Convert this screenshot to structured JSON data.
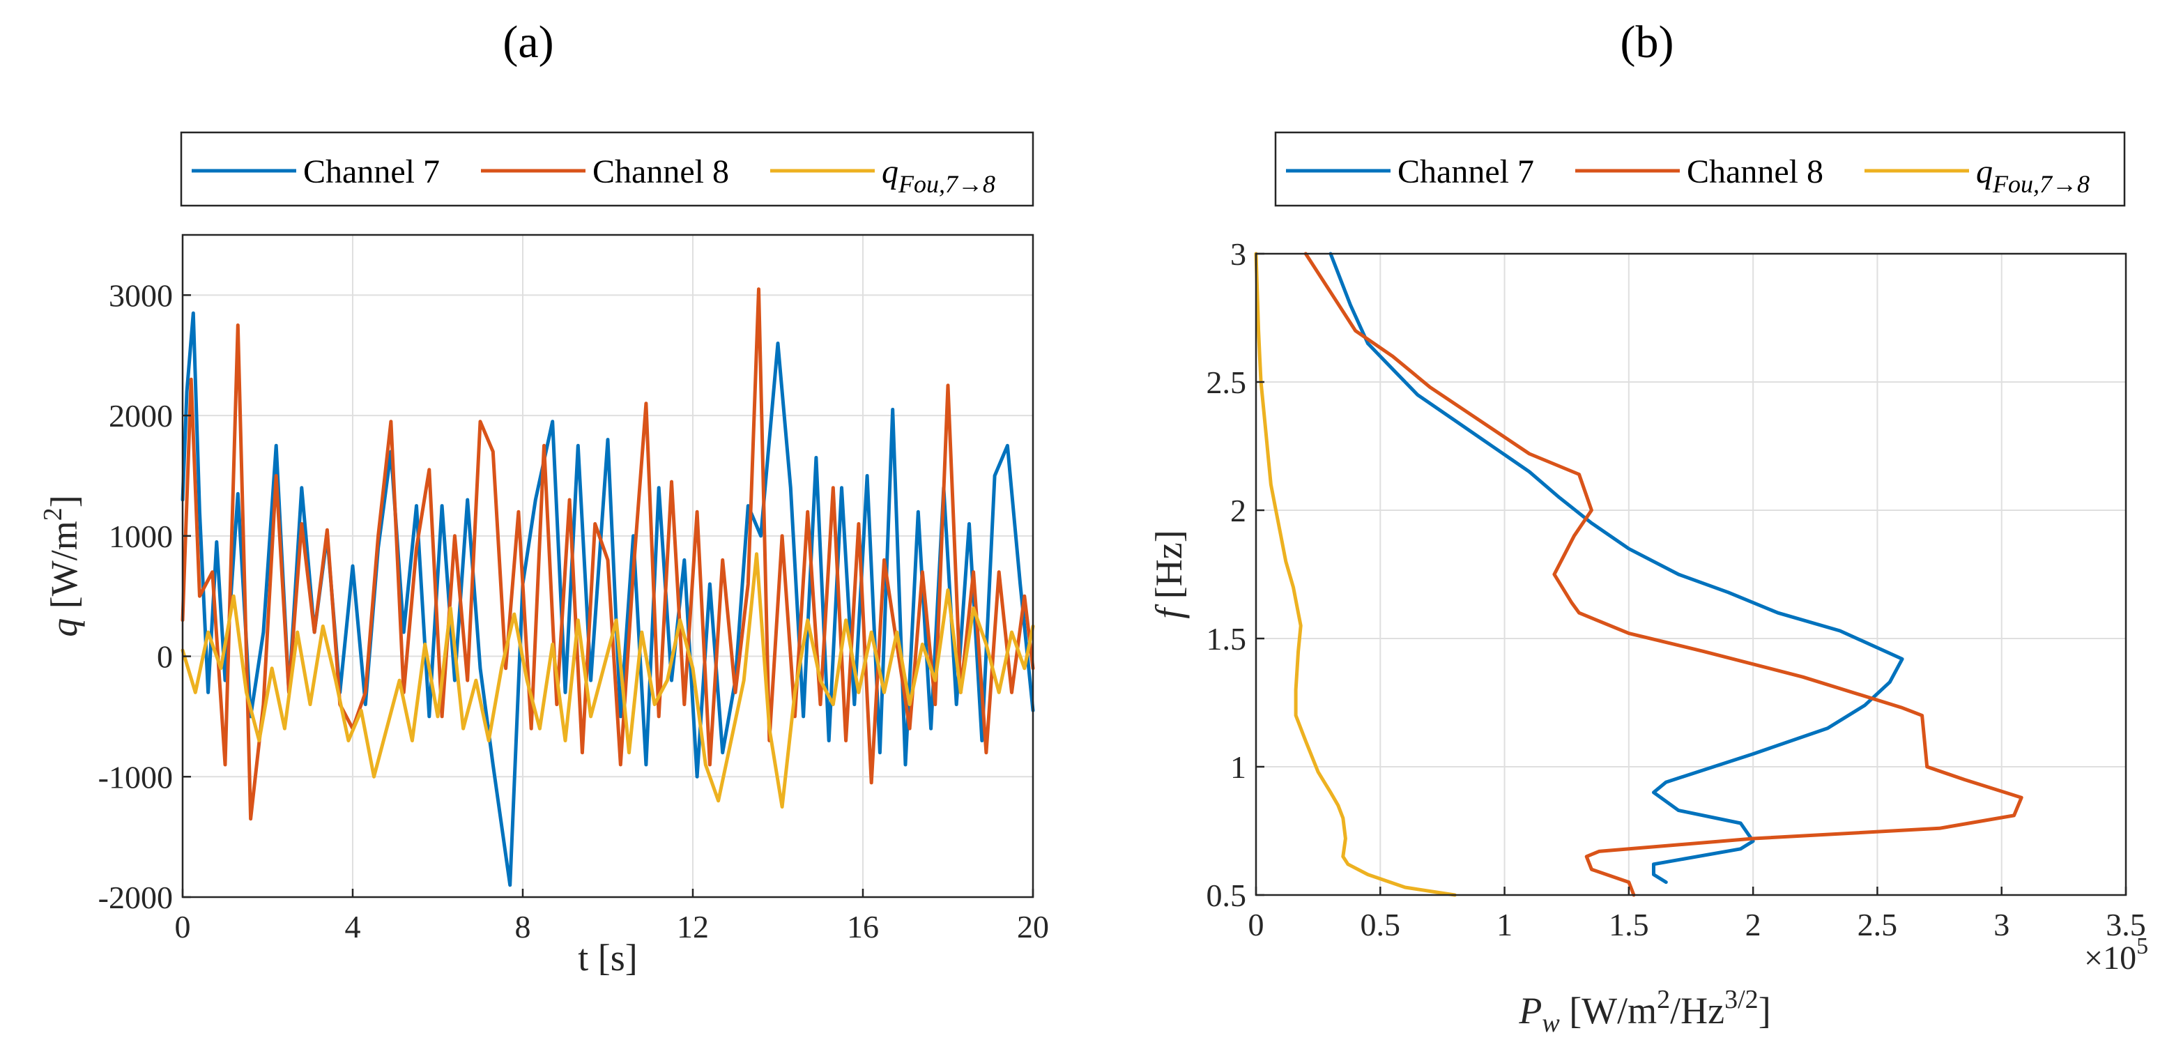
{
  "colors": {
    "channel7": "#0072BD",
    "channel8": "#D95319",
    "qfou": "#EDB120"
  },
  "chart_data": [
    {
      "type": "line",
      "title": "(a)",
      "xlabel": "t [s]",
      "ylabel": {
        "symbol": "q",
        "unit": " [W/m",
        "sup": "2",
        "close": "]"
      },
      "xlim": [
        0,
        20
      ],
      "ylim": [
        -2000,
        3500
      ],
      "xticks": [
        0,
        4,
        8,
        12,
        16,
        20
      ],
      "yticks": [
        -2000,
        -1000,
        0,
        1000,
        2000,
        3000
      ],
      "grid": true,
      "legend": {
        "placement": "top",
        "entries": [
          "Channel 7",
          "Channel 8",
          "q_Fou,7→8"
        ]
      },
      "series": [
        {
          "name": "Channel 7",
          "color": "#0072BD",
          "x": [
            0,
            0.1,
            0.25,
            0.4,
            0.6,
            0.8,
            1.0,
            1.3,
            1.6,
            1.9,
            2.2,
            2.5,
            2.8,
            3.1,
            3.4,
            3.7,
            4.0,
            4.3,
            4.6,
            4.9,
            5.2,
            5.5,
            5.8,
            6.1,
            6.4,
            6.7,
            7.0,
            7.3,
            7.7,
            8.0,
            8.3,
            8.7,
            9.0,
            9.3,
            9.6,
            10.0,
            10.3,
            10.6,
            10.9,
            11.2,
            11.5,
            11.8,
            12.1,
            12.4,
            12.7,
            13.0,
            13.3,
            13.6,
            14.0,
            14.3,
            14.6,
            14.9,
            15.2,
            15.5,
            15.8,
            16.1,
            16.4,
            16.7,
            17.0,
            17.3,
            17.6,
            17.9,
            18.2,
            18.5,
            18.8,
            19.1,
            19.4,
            19.7,
            20.0
          ],
          "y": [
            1300,
            2200,
            2850,
            1200,
            -300,
            950,
            -200,
            1350,
            -500,
            200,
            1750,
            -300,
            1400,
            200,
            1000,
            -300,
            750,
            -400,
            900,
            1700,
            200,
            1250,
            -500,
            1250,
            -200,
            1300,
            -100,
            -900,
            -1900,
            600,
            1300,
            1950,
            -300,
            1750,
            -200,
            1800,
            -500,
            1000,
            -900,
            1400,
            -200,
            800,
            -1000,
            600,
            -800,
            -200,
            1250,
            1000,
            2600,
            1400,
            -500,
            1650,
            -700,
            1400,
            -400,
            1500,
            -800,
            2050,
            -900,
            1200,
            -600,
            1400,
            -400,
            1100,
            -700,
            1500,
            1750,
            600,
            -450
          ]
        },
        {
          "name": "Channel 8",
          "color": "#D95319",
          "x": [
            0,
            0.2,
            0.4,
            0.7,
            1.0,
            1.3,
            1.6,
            1.9,
            2.2,
            2.5,
            2.8,
            3.1,
            3.4,
            3.7,
            4.0,
            4.3,
            4.6,
            4.9,
            5.2,
            5.5,
            5.8,
            6.1,
            6.4,
            6.7,
            7.0,
            7.3,
            7.6,
            7.9,
            8.2,
            8.5,
            8.8,
            9.1,
            9.4,
            9.7,
            10.0,
            10.3,
            10.6,
            10.9,
            11.2,
            11.5,
            11.8,
            12.1,
            12.4,
            12.7,
            13.0,
            13.3,
            13.55,
            13.8,
            14.1,
            14.4,
            14.7,
            15.0,
            15.3,
            15.6,
            15.9,
            16.2,
            16.5,
            16.8,
            17.1,
            17.4,
            17.7,
            18.0,
            18.3,
            18.6,
            18.9,
            19.2,
            19.5,
            19.8,
            20.0
          ],
          "y": [
            300,
            2300,
            500,
            700,
            -900,
            2750,
            -1350,
            -400,
            1500,
            -300,
            1100,
            200,
            1050,
            -400,
            -600,
            -300,
            1000,
            1950,
            -300,
            900,
            1550,
            -500,
            1000,
            -200,
            1950,
            1700,
            -100,
            1200,
            -600,
            1750,
            -400,
            1300,
            -800,
            1100,
            800,
            -900,
            700,
            2100,
            -500,
            1450,
            -400,
            1200,
            -900,
            800,
            -300,
            600,
            3050,
            -700,
            1000,
            -500,
            1200,
            -400,
            1400,
            -700,
            1100,
            -1050,
            800,
            100,
            -600,
            700,
            -400,
            2250,
            -300,
            700,
            -800,
            700,
            -300,
            500,
            -100
          ]
        },
        {
          "name": "q_Fou,7→8",
          "color": "#EDB120",
          "x": [
            0,
            0.3,
            0.6,
            0.9,
            1.2,
            1.5,
            1.8,
            2.1,
            2.4,
            2.7,
            3.0,
            3.3,
            3.6,
            3.9,
            4.2,
            4.5,
            4.8,
            5.1,
            5.4,
            5.7,
            6.0,
            6.3,
            6.6,
            6.9,
            7.2,
            7.5,
            7.8,
            8.1,
            8.4,
            8.7,
            9.0,
            9.3,
            9.6,
            9.9,
            10.2,
            10.5,
            10.8,
            11.1,
            11.4,
            11.7,
            12.0,
            12.3,
            12.6,
            12.9,
            13.2,
            13.5,
            13.8,
            14.1,
            14.4,
            14.7,
            15.0,
            15.3,
            15.6,
            15.9,
            16.2,
            16.5,
            16.8,
            17.1,
            17.4,
            17.7,
            18.0,
            18.3,
            18.6,
            18.9,
            19.2,
            19.5,
            19.8,
            20.0
          ],
          "y": [
            50,
            -300,
            200,
            -100,
            500,
            -300,
            -700,
            -100,
            -600,
            200,
            -400,
            250,
            -200,
            -700,
            -450,
            -1000,
            -600,
            -200,
            -700,
            100,
            -500,
            400,
            -600,
            -200,
            -700,
            -100,
            350,
            -200,
            -600,
            100,
            -700,
            300,
            -500,
            -100,
            300,
            -800,
            200,
            -400,
            -200,
            300,
            -100,
            -900,
            -1200,
            -700,
            -200,
            850,
            -600,
            -1250,
            -300,
            300,
            -200,
            -400,
            300,
            -300,
            200,
            -300,
            200,
            -400,
            100,
            -200,
            550,
            -300,
            400,
            100,
            -300,
            200,
            -100,
            250
          ]
        }
      ]
    },
    {
      "type": "line",
      "title": "(b)",
      "xlabel": {
        "symbol": "P",
        "sub": "w",
        "unit": " [W/m",
        "sup1": "2",
        "mid": "/Hz",
        "sup2": "3/2",
        "close": "]"
      },
      "ylabel": {
        "symbol": "f",
        "unit": " [Hz]"
      },
      "xlim": [
        0,
        3.5
      ],
      "ylim": [
        0.5,
        3
      ],
      "xticks": [
        0,
        0.5,
        1,
        1.5,
        2,
        2.5,
        3,
        3.5
      ],
      "yticks": [
        0.5,
        1,
        1.5,
        2,
        2.5,
        3
      ],
      "x_multiplier": {
        "base": "×10",
        "exp": "5"
      },
      "grid": true,
      "legend": {
        "placement": "top",
        "entries": [
          "Channel 7",
          "Channel 8",
          "q_Fou,7→8"
        ]
      },
      "series": [
        {
          "name": "Channel 7",
          "color": "#0072BD",
          "x": [
            1.65,
            1.6,
            1.6,
            1.95,
            2.0,
            1.95,
            1.7,
            1.6,
            1.65,
            2.0,
            2.3,
            2.45,
            2.55,
            2.6,
            2.35,
            2.1,
            1.9,
            1.7,
            1.5,
            1.35,
            1.22,
            1.1,
            0.95,
            0.8,
            0.65,
            0.55,
            0.45,
            0.38,
            0.3
          ],
          "y": [
            0.55,
            0.58,
            0.62,
            0.68,
            0.71,
            0.78,
            0.83,
            0.9,
            0.94,
            1.05,
            1.15,
            1.24,
            1.33,
            1.42,
            1.53,
            1.6,
            1.68,
            1.75,
            1.85,
            1.95,
            2.05,
            2.15,
            2.25,
            2.35,
            2.45,
            2.55,
            2.65,
            2.8,
            3.0
          ]
        },
        {
          "name": "Channel 8",
          "color": "#D95319",
          "x": [
            1.52,
            1.5,
            1.35,
            1.33,
            1.38,
            2.0,
            2.75,
            3.05,
            3.08,
            2.85,
            2.7,
            2.68,
            2.6,
            2.2,
            1.8,
            1.5,
            1.3,
            1.27,
            1.2,
            1.28,
            1.35,
            1.3,
            1.1,
            0.9,
            0.7,
            0.55,
            0.4,
            0.3,
            0.2
          ],
          "y": [
            0.5,
            0.55,
            0.6,
            0.65,
            0.67,
            0.72,
            0.76,
            0.81,
            0.88,
            0.95,
            1.0,
            1.2,
            1.23,
            1.35,
            1.45,
            1.52,
            1.6,
            1.64,
            1.75,
            1.9,
            2.0,
            2.14,
            2.22,
            2.35,
            2.48,
            2.6,
            2.7,
            2.85,
            3.0
          ]
        },
        {
          "name": "q_Fou,7→8",
          "color": "#EDB120",
          "x": [
            0.8,
            0.6,
            0.45,
            0.37,
            0.35,
            0.36,
            0.35,
            0.33,
            0.3,
            0.25,
            0.2,
            0.16,
            0.16,
            0.17,
            0.18,
            0.17,
            0.15,
            0.12,
            0.1,
            0.08,
            0.06,
            0.05,
            0.04,
            0.03,
            0.02,
            0.015,
            0.01,
            0.005,
            0.0
          ],
          "y": [
            0.5,
            0.53,
            0.58,
            0.62,
            0.65,
            0.72,
            0.8,
            0.85,
            0.9,
            0.98,
            1.1,
            1.2,
            1.3,
            1.45,
            1.55,
            1.6,
            1.7,
            1.8,
            1.9,
            2.0,
            2.1,
            2.2,
            2.3,
            2.4,
            2.5,
            2.6,
            2.7,
            2.85,
            3.0
          ]
        }
      ]
    }
  ]
}
